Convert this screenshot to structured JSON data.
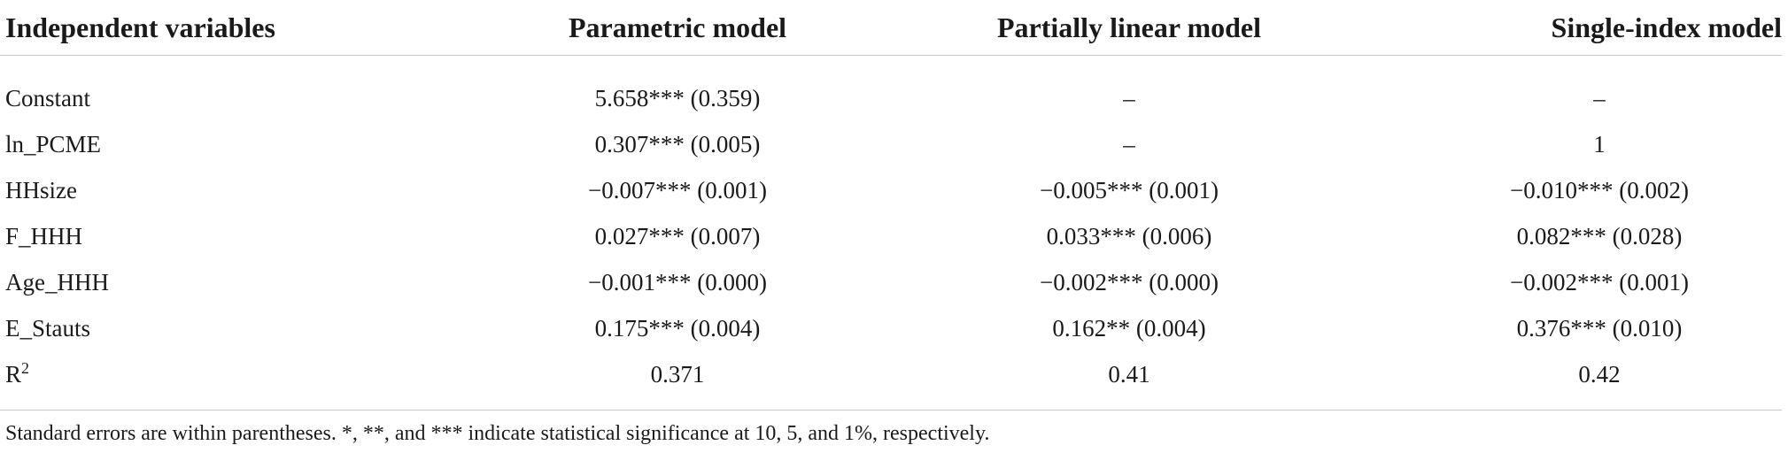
{
  "table": {
    "headers": [
      "Independent variables",
      "Parametric model",
      "Partially linear model",
      "Single-index model"
    ],
    "rows": [
      {
        "variable": "Constant",
        "parametric": "5.658*** (0.359)",
        "partially_linear": "–",
        "single_index": "–"
      },
      {
        "variable": "ln_PCME",
        "parametric": "0.307*** (0.005)",
        "partially_linear": "–",
        "single_index": "1"
      },
      {
        "variable": "HHsize",
        "parametric": "−0.007*** (0.001)",
        "partially_linear": "−0.005*** (0.001)",
        "single_index": "−0.010*** (0.002)"
      },
      {
        "variable": "F_HHH",
        "parametric": "0.027*** (0.007)",
        "partially_linear": "0.033*** (0.006)",
        "single_index": "0.082*** (0.028)"
      },
      {
        "variable": "Age_HHH",
        "parametric": "−0.001*** (0.000)",
        "partially_linear": "−0.002*** (0.000)",
        "single_index": "−0.002*** (0.001)"
      },
      {
        "variable": "E_Stauts",
        "parametric": "0.175*** (0.004)",
        "partially_linear": "0.162** (0.004)",
        "single_index": "0.376*** (0.010)"
      }
    ],
    "r2_row": {
      "label_base": "R",
      "label_sup": "2",
      "parametric": "0.371",
      "partially_linear": "0.41",
      "single_index": "0.42"
    }
  },
  "footnote": "Standard errors are within parentheses. *, **, and *** indicate statistical significance at 10, 5, and 1%, respectively."
}
